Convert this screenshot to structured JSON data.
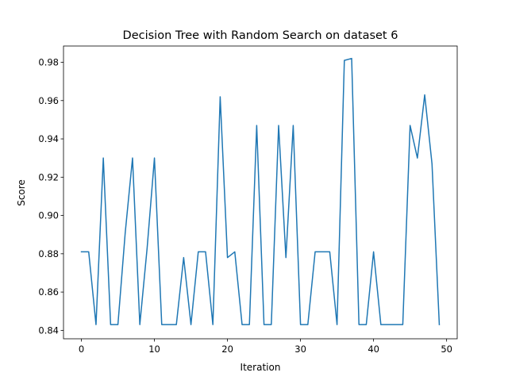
{
  "chart_data": {
    "type": "line",
    "title": "Decision Tree with Random Search on dataset 6",
    "xlabel": "Iteration",
    "ylabel": "Score",
    "xlim": [
      -2.45,
      51.45
    ],
    "ylim": [
      0.8356,
      0.9885
    ],
    "xticks": [
      0,
      10,
      20,
      30,
      40,
      50
    ],
    "yticks": [
      0.84,
      0.86,
      0.88,
      0.9,
      0.92,
      0.94,
      0.96,
      0.98
    ],
    "ytick_labels": [
      "0.84",
      "0.86",
      "0.88",
      "0.90",
      "0.92",
      "0.94",
      "0.96",
      "0.98"
    ],
    "grid": false,
    "series": [
      {
        "color": "#1f77b4",
        "x": [
          0,
          1,
          2,
          3,
          4,
          5,
          6,
          7,
          8,
          9,
          10,
          11,
          12,
          13,
          14,
          15,
          16,
          17,
          18,
          19,
          20,
          21,
          22,
          23,
          24,
          25,
          26,
          27,
          28,
          29,
          30,
          31,
          32,
          33,
          34,
          35,
          36,
          37,
          38,
          39,
          40,
          41,
          42,
          43,
          44,
          45,
          46,
          47,
          48,
          49
        ],
        "values": [
          0.881,
          0.881,
          0.843,
          0.93,
          0.843,
          0.843,
          0.891,
          0.93,
          0.843,
          0.883,
          0.93,
          0.843,
          0.843,
          0.843,
          0.878,
          0.843,
          0.881,
          0.881,
          0.843,
          0.962,
          0.878,
          0.881,
          0.843,
          0.843,
          0.947,
          0.843,
          0.843,
          0.947,
          0.878,
          0.947,
          0.843,
          0.843,
          0.881,
          0.881,
          0.881,
          0.843,
          0.981,
          0.982,
          0.843,
          0.843,
          0.881,
          0.843,
          0.843,
          0.843,
          0.843,
          0.947,
          0.93,
          0.963,
          0.927,
          0.843
        ]
      }
    ]
  }
}
